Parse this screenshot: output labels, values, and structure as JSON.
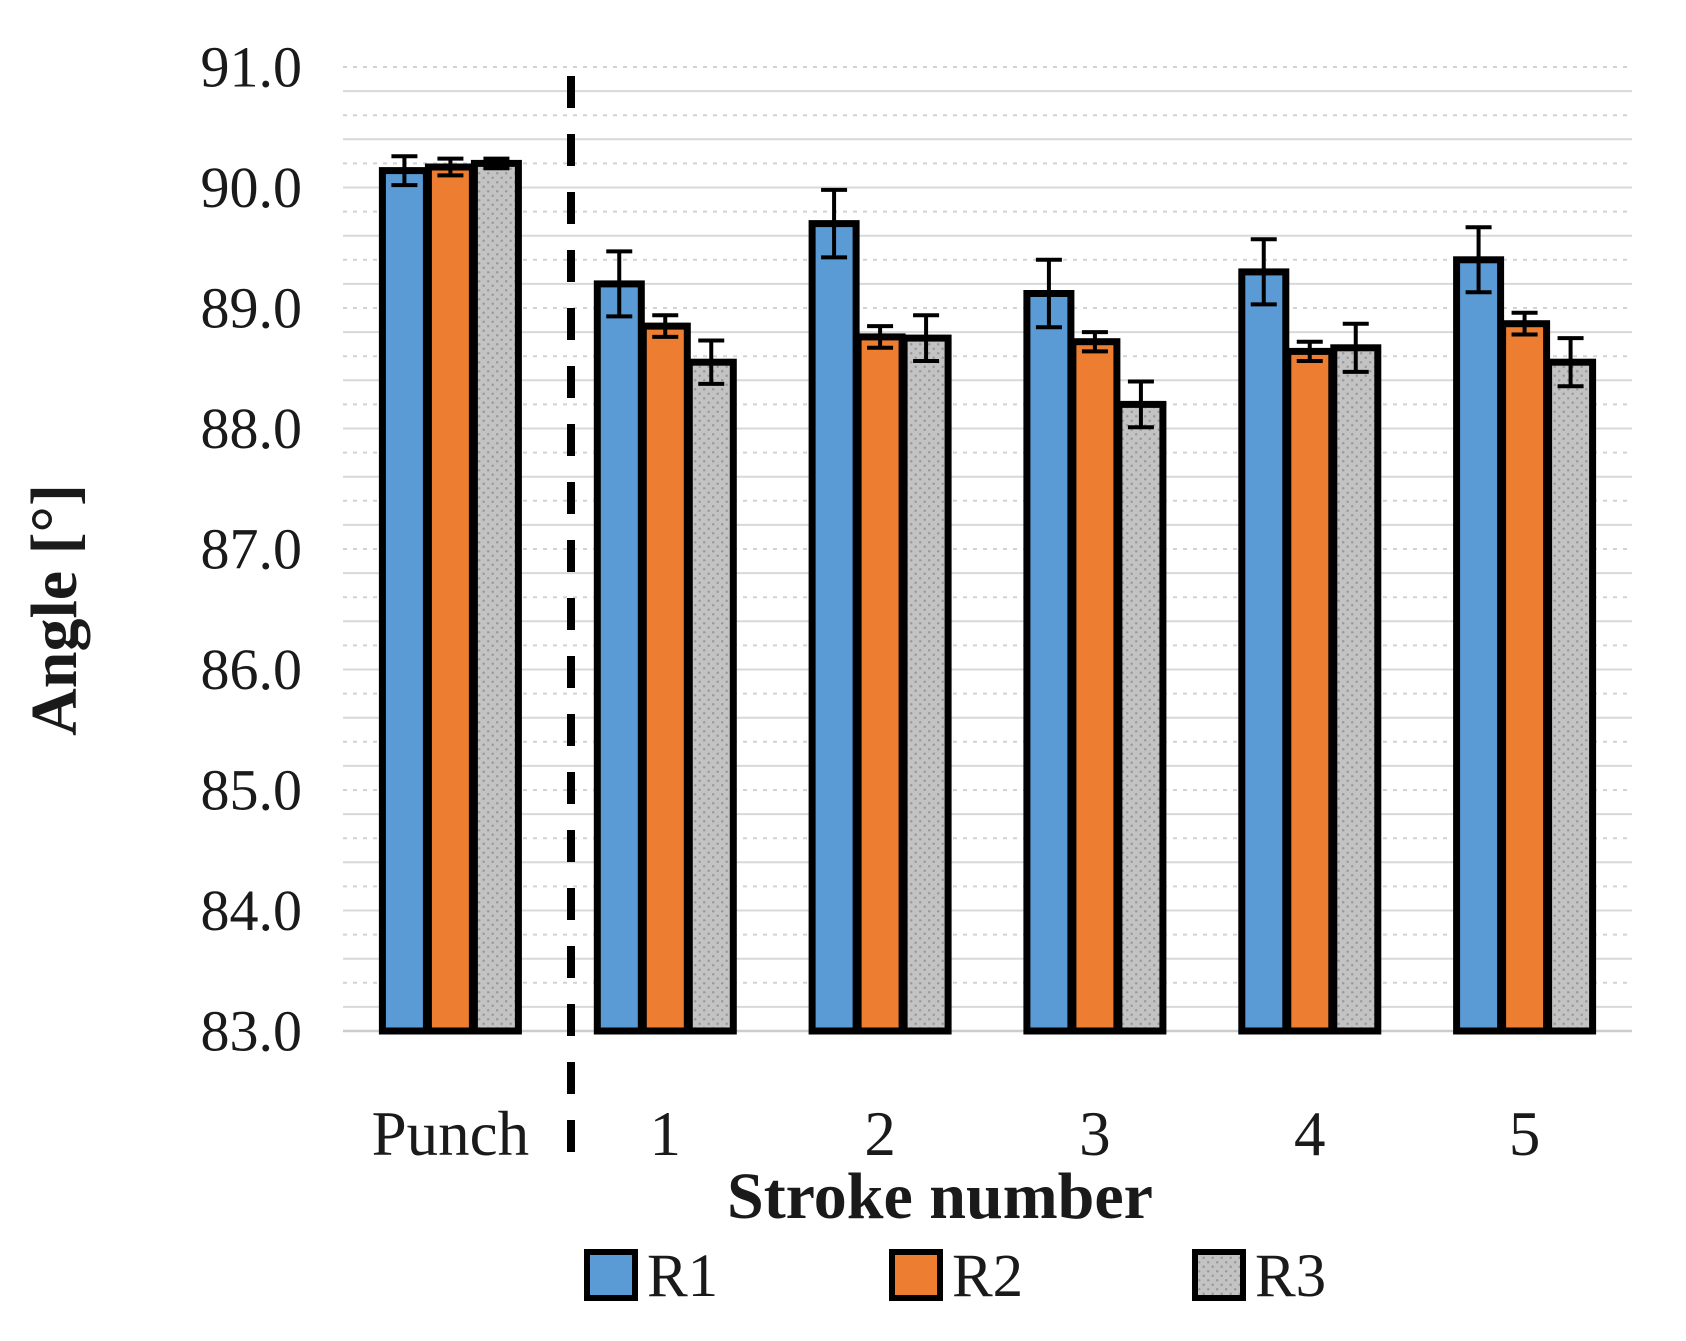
{
  "figure": {
    "kind": "excel-style grouped bar chart with error bars",
    "background_color": "#ffffff"
  },
  "chart_data": {
    "type": "bar",
    "title": "",
    "xlabel": "Stroke number",
    "ylabel": "Angle [°]",
    "ylim": [
      83.0,
      91.0
    ],
    "ytick_step": 1.0,
    "minor_grid_step": 0.2,
    "ytick_labels": [
      "91.0",
      "90.0",
      "89.0",
      "88.0",
      "87.0",
      "86.0",
      "85.0",
      "84.0",
      "83.0"
    ],
    "categories": [
      "Punch",
      "1",
      "2",
      "3",
      "4",
      "5"
    ],
    "series": [
      {
        "name": "R1",
        "color": "#5B9BD5",
        "fill_pattern": "solid",
        "values": [
          90.14,
          89.2,
          89.7,
          89.12,
          89.3,
          89.4
        ],
        "errors": [
          0.12,
          0.27,
          0.28,
          0.28,
          0.27,
          0.27
        ]
      },
      {
        "name": "R2",
        "color": "#ED7D31",
        "fill_pattern": "solid",
        "values": [
          90.17,
          88.85,
          88.76,
          88.72,
          88.64,
          88.87
        ],
        "errors": [
          0.07,
          0.09,
          0.09,
          0.08,
          0.08,
          0.09
        ]
      },
      {
        "name": "R3",
        "color": "#C3C3C3",
        "fill_pattern": "dots",
        "dot_color": "#9a9a9a",
        "values": [
          90.2,
          88.55,
          88.75,
          88.2,
          88.67,
          88.55
        ],
        "errors": [
          0.04,
          0.18,
          0.19,
          0.19,
          0.2,
          0.2
        ]
      }
    ],
    "bar_border_color": "#000000",
    "error_bar_color": "#000000",
    "separator_line": {
      "after_category": "Punch",
      "style": "dashed",
      "color": "#000000"
    },
    "grid": {
      "major_color": "#d8d8d8",
      "minor_color": "#d2d2d2",
      "minor_style": "dashed",
      "baseline_color": "#cccccc"
    },
    "legend": {
      "position": "bottom",
      "entries": [
        "R1",
        "R2",
        "R3"
      ]
    }
  }
}
